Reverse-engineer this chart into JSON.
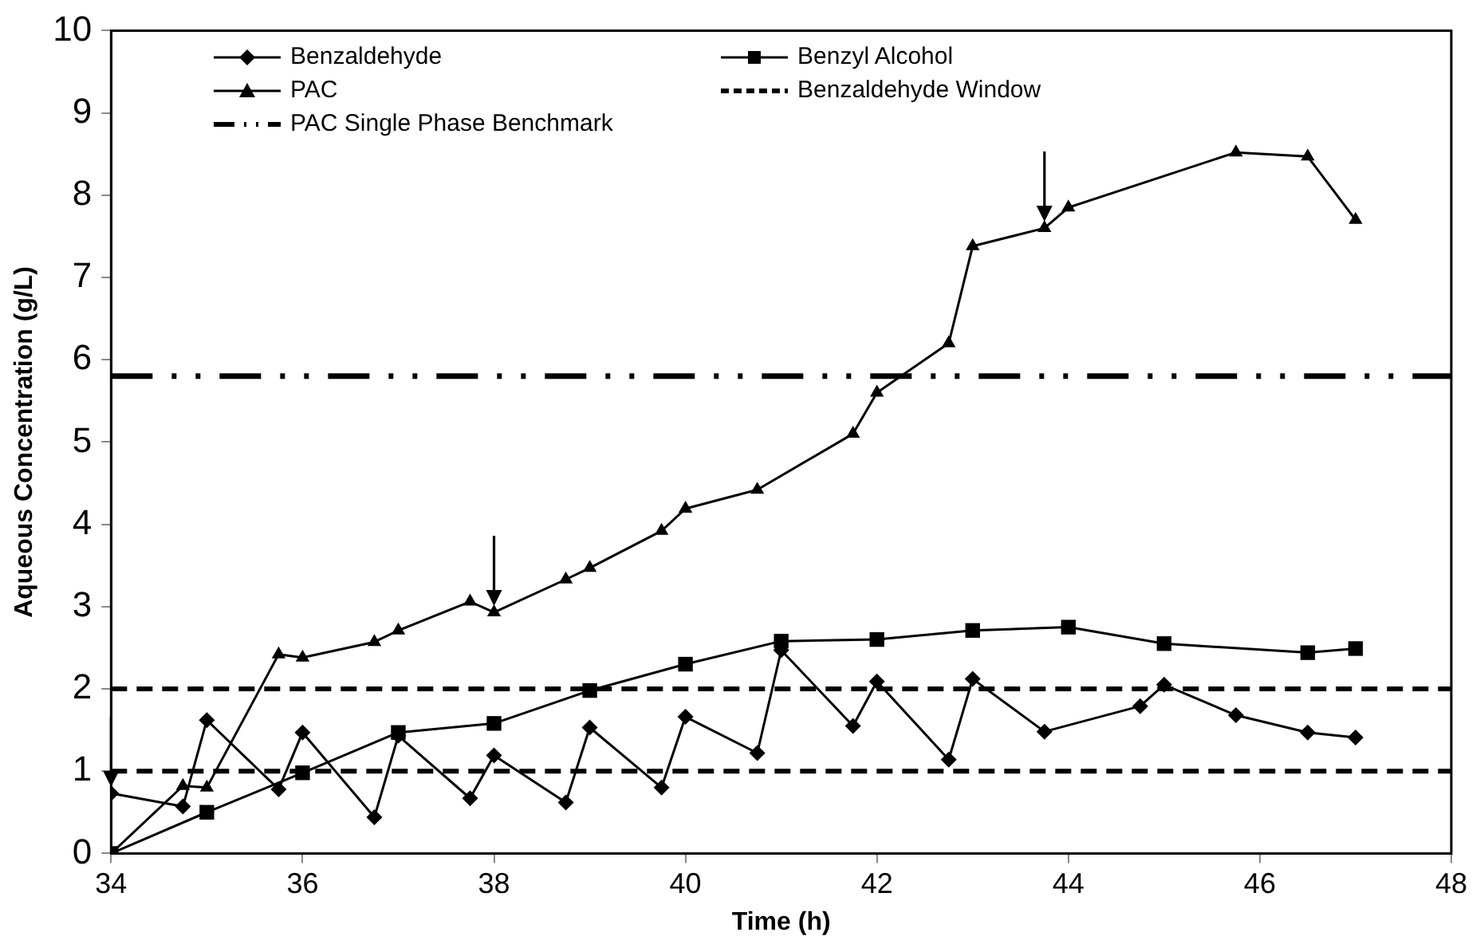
{
  "chart_data": {
    "type": "line",
    "xlabel": "Time (h)",
    "ylabel": "Aqueous Concentration (g/L)",
    "xlim": [
      34,
      48
    ],
    "xticks": [
      34,
      36,
      38,
      40,
      42,
      44,
      46,
      48
    ],
    "ylim": [
      0,
      10
    ],
    "yticks": [
      0,
      1,
      2,
      3,
      4,
      5,
      6,
      7,
      8,
      9,
      10
    ],
    "grid": false,
    "legend": "top",
    "line_style": "solid",
    "series": [
      {
        "name": "Benzaldehyde",
        "color": "#000000",
        "marker": "diamond",
        "x": [
          34,
          34.75,
          35,
          35.75,
          36,
          36.75,
          37,
          37.75,
          38,
          38.75,
          39,
          39.75,
          40,
          40.75,
          41,
          41.75,
          42,
          42.75,
          43,
          43.75,
          44.75,
          45,
          45.75,
          46.5,
          47
        ],
        "values": [
          0.73,
          0.57,
          1.62,
          0.78,
          1.47,
          0.44,
          1.43,
          0.67,
          1.19,
          0.62,
          1.53,
          0.8,
          1.66,
          1.22,
          2.47,
          1.55,
          2.09,
          1.14,
          2.12,
          1.48,
          1.79,
          2.05,
          1.68,
          1.47,
          1.41
        ]
      },
      {
        "name": "Benzyl Alcohol",
        "color": "#000000",
        "marker": "square",
        "x": [
          34,
          35,
          36,
          37,
          38,
          39,
          40,
          41,
          42,
          43,
          44,
          45,
          46.5,
          47
        ],
        "values": [
          0,
          0.5,
          0.98,
          1.47,
          1.58,
          1.98,
          2.3,
          2.58,
          2.6,
          2.71,
          2.75,
          2.55,
          2.44,
          2.49
        ]
      },
      {
        "name": "PAC",
        "color": "#000000",
        "marker": "triangle",
        "x": [
          34,
          34.75,
          35,
          35.75,
          36,
          36.75,
          37,
          37.75,
          38,
          38.75,
          39,
          39.75,
          40,
          40.75,
          41.75,
          42,
          42.75,
          43,
          43.75,
          44,
          45.75,
          46.5,
          47
        ],
        "values": [
          0,
          0.82,
          0.8,
          2.42,
          2.38,
          2.57,
          2.71,
          3.06,
          2.93,
          3.33,
          3.47,
          3.92,
          4.19,
          4.42,
          5.1,
          5.6,
          6.2,
          7.38,
          7.6,
          7.85,
          8.52,
          8.47,
          7.7
        ]
      }
    ],
    "ref_lines": [
      {
        "axis": "y",
        "value": 2,
        "label": "Benzaldehyde Window",
        "color": "#000000",
        "line_style": "dashed"
      },
      {
        "axis": "y",
        "value": 1,
        "label": null,
        "color": "#000000",
        "line_style": "dashed"
      },
      {
        "axis": "y",
        "value": 5.8,
        "label": "PAC Single Phase Benchmark",
        "color": "#000000",
        "line_style": "dashdotdot"
      }
    ]
  }
}
